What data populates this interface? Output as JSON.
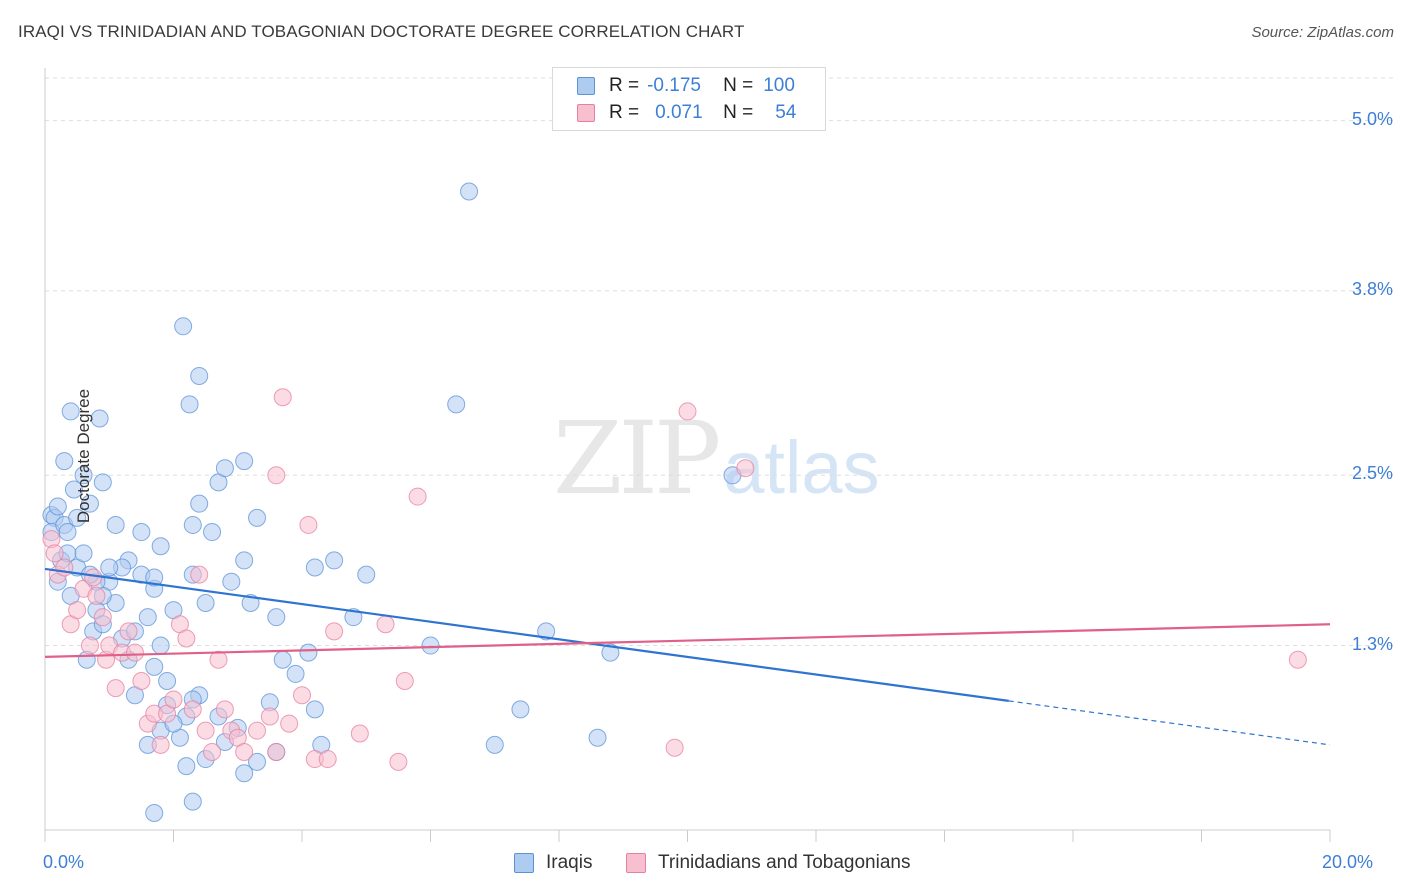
{
  "title": "IRAQI VS TRINIDADIAN AND TOBAGONIAN DOCTORATE DEGREE CORRELATION CHART",
  "source": "Source: ZipAtlas.com",
  "watermark": {
    "zip": "ZIP",
    "atlas": "atlas"
  },
  "legend_top": {
    "rows": [
      {
        "r_label": "R =",
        "r_value": "-0.175",
        "n_label": "N =",
        "n_value": "100"
      },
      {
        "r_label": "R =",
        "r_value": "0.071",
        "n_label": "N =",
        "n_value": "54"
      }
    ]
  },
  "colors": {
    "blue_fill": "#aecbf0",
    "blue_stroke": "#5b93d9",
    "blue_line": "#2f74d0",
    "pink_fill": "#f7bfd0",
    "pink_stroke": "#e77fa0",
    "pink_line": "#e0608a",
    "tick_text": "#3d7fd6",
    "grid": "#dddddd"
  },
  "chart_data": {
    "type": "scatter",
    "title": "IRAQI VS TRINIDADIAN AND TOBAGONIAN DOCTORATE DEGREE CORRELATION CHART",
    "xlabel": "",
    "ylabel": "Doctorate Degree",
    "xlim": [
      0,
      20
    ],
    "ylim": [
      0,
      5.3
    ],
    "x_tick_labels": [
      "0.0%",
      "20.0%"
    ],
    "y_ticks": [
      1.3,
      2.5,
      3.8,
      5.0
    ],
    "y_tick_labels": [
      "1.3%",
      "2.5%",
      "3.8%",
      "5.0%"
    ],
    "grid": "horizontal dashed",
    "legend_position": "top-center and bottom",
    "series": [
      {
        "name": "Iraqis",
        "r": -0.175,
        "n": 100,
        "trend": {
          "x": [
            0,
            15
          ],
          "y": [
            1.84,
            0.91
          ],
          "dashed_to": [
            20,
            0.6
          ]
        },
        "points": [
          [
            0.1,
            2.22
          ],
          [
            0.15,
            2.2
          ],
          [
            0.2,
            2.28
          ],
          [
            0.1,
            2.1
          ],
          [
            0.3,
            2.15
          ],
          [
            0.25,
            1.9
          ],
          [
            0.35,
            1.95
          ],
          [
            0.2,
            1.75
          ],
          [
            0.4,
            1.65
          ],
          [
            0.5,
            1.85
          ],
          [
            0.45,
            2.4
          ],
          [
            0.6,
            2.5
          ],
          [
            0.3,
            2.6
          ],
          [
            0.4,
            2.95
          ],
          [
            0.7,
            2.3
          ],
          [
            0.85,
            2.9
          ],
          [
            0.9,
            2.45
          ],
          [
            0.65,
            1.2
          ],
          [
            0.75,
            1.4
          ],
          [
            0.8,
            1.55
          ],
          [
            0.9,
            1.45
          ],
          [
            1.0,
            1.75
          ],
          [
            1.1,
            1.6
          ],
          [
            1.2,
            1.35
          ],
          [
            1.3,
            1.2
          ],
          [
            1.4,
            1.4
          ],
          [
            1.5,
            1.8
          ],
          [
            1.6,
            1.5
          ],
          [
            1.7,
            1.7
          ],
          [
            1.8,
            1.3
          ],
          [
            1.9,
            1.05
          ],
          [
            2.0,
            1.55
          ],
          [
            2.1,
            0.65
          ],
          [
            2.2,
            0.8
          ],
          [
            2.3,
            0.2
          ],
          [
            2.4,
            0.95
          ],
          [
            2.5,
            1.6
          ],
          [
            2.6,
            2.1
          ],
          [
            2.7,
            2.45
          ],
          [
            2.3,
            1.8
          ],
          [
            1.7,
            1.78
          ],
          [
            1.8,
            2.0
          ],
          [
            1.5,
            2.1
          ],
          [
            1.3,
            1.9
          ],
          [
            1.2,
            1.85
          ],
          [
            1.1,
            2.15
          ],
          [
            1.0,
            1.85
          ],
          [
            0.9,
            1.65
          ],
          [
            0.8,
            1.75
          ],
          [
            0.7,
            1.8
          ],
          [
            0.6,
            1.95
          ],
          [
            0.5,
            2.2
          ],
          [
            0.35,
            2.1
          ],
          [
            1.4,
            0.95
          ],
          [
            1.6,
            0.6
          ],
          [
            1.7,
            1.15
          ],
          [
            1.8,
            0.7
          ],
          [
            1.9,
            0.88
          ],
          [
            2.0,
            0.75
          ],
          [
            2.2,
            0.45
          ],
          [
            2.3,
            0.92
          ],
          [
            2.5,
            0.5
          ],
          [
            2.7,
            0.8
          ],
          [
            2.8,
            0.62
          ],
          [
            3.0,
            0.72
          ],
          [
            3.1,
            0.4
          ],
          [
            3.3,
            0.48
          ],
          [
            3.5,
            0.9
          ],
          [
            3.6,
            0.55
          ],
          [
            3.7,
            1.2
          ],
          [
            3.9,
            1.1
          ],
          [
            4.2,
            0.85
          ],
          [
            4.3,
            0.6
          ],
          [
            4.1,
            1.25
          ],
          [
            3.6,
            1.5
          ],
          [
            3.2,
            1.6
          ],
          [
            2.9,
            1.75
          ],
          [
            3.1,
            1.9
          ],
          [
            4.2,
            1.85
          ],
          [
            4.8,
            1.5
          ],
          [
            2.15,
            3.55
          ],
          [
            2.4,
            3.2
          ],
          [
            2.25,
            3.0
          ],
          [
            2.3,
            2.15
          ],
          [
            3.1,
            2.6
          ],
          [
            2.8,
            2.55
          ],
          [
            3.3,
            2.2
          ],
          [
            2.4,
            2.3
          ],
          [
            6.4,
            3.0
          ],
          [
            6.6,
            4.5
          ],
          [
            10.7,
            2.5
          ],
          [
            7.8,
            1.4
          ],
          [
            8.8,
            1.25
          ],
          [
            6.0,
            1.3
          ],
          [
            5.0,
            1.8
          ],
          [
            4.5,
            1.9
          ],
          [
            7.4,
            0.85
          ],
          [
            8.6,
            0.65
          ],
          [
            7.0,
            0.6
          ],
          [
            1.7,
            0.12
          ]
        ]
      },
      {
        "name": "Trinidadians and Tobagonians",
        "r": 0.071,
        "n": 54,
        "trend": {
          "x": [
            0,
            20
          ],
          "y": [
            1.22,
            1.45
          ]
        },
        "points": [
          [
            0.1,
            2.05
          ],
          [
            0.15,
            1.95
          ],
          [
            0.2,
            1.8
          ],
          [
            0.3,
            1.85
          ],
          [
            0.4,
            1.45
          ],
          [
            0.5,
            1.55
          ],
          [
            0.6,
            1.7
          ],
          [
            0.7,
            1.3
          ],
          [
            0.75,
            1.78
          ],
          [
            0.8,
            1.65
          ],
          [
            0.9,
            1.5
          ],
          [
            0.95,
            1.2
          ],
          [
            1.0,
            1.3
          ],
          [
            1.1,
            1.0
          ],
          [
            1.2,
            1.25
          ],
          [
            1.3,
            1.4
          ],
          [
            1.4,
            1.25
          ],
          [
            1.5,
            1.05
          ],
          [
            1.6,
            0.75
          ],
          [
            1.7,
            0.82
          ],
          [
            1.8,
            0.6
          ],
          [
            1.9,
            0.82
          ],
          [
            2.0,
            0.92
          ],
          [
            2.1,
            1.45
          ],
          [
            2.2,
            1.35
          ],
          [
            2.3,
            0.85
          ],
          [
            2.4,
            1.8
          ],
          [
            2.5,
            0.7
          ],
          [
            2.6,
            0.55
          ],
          [
            2.7,
            1.2
          ],
          [
            2.8,
            0.85
          ],
          [
            2.9,
            0.7
          ],
          [
            3.0,
            0.65
          ],
          [
            3.1,
            0.55
          ],
          [
            3.3,
            0.7
          ],
          [
            3.5,
            0.8
          ],
          [
            3.6,
            0.55
          ],
          [
            3.8,
            0.75
          ],
          [
            4.0,
            0.95
          ],
          [
            4.2,
            0.5
          ],
          [
            4.4,
            0.5
          ],
          [
            4.5,
            1.4
          ],
          [
            4.9,
            0.68
          ],
          [
            5.5,
            0.48
          ],
          [
            5.6,
            1.05
          ],
          [
            5.3,
            1.45
          ],
          [
            5.8,
            2.35
          ],
          [
            4.1,
            2.15
          ],
          [
            3.7,
            3.05
          ],
          [
            3.6,
            2.5
          ],
          [
            10.9,
            2.55
          ],
          [
            10.0,
            2.95
          ],
          [
            9.8,
            0.58
          ],
          [
            19.5,
            1.2
          ]
        ]
      }
    ]
  },
  "bottom_legend": [
    {
      "label": "Iraqis"
    },
    {
      "label": "Trinidadians and Tobagonians"
    }
  ]
}
